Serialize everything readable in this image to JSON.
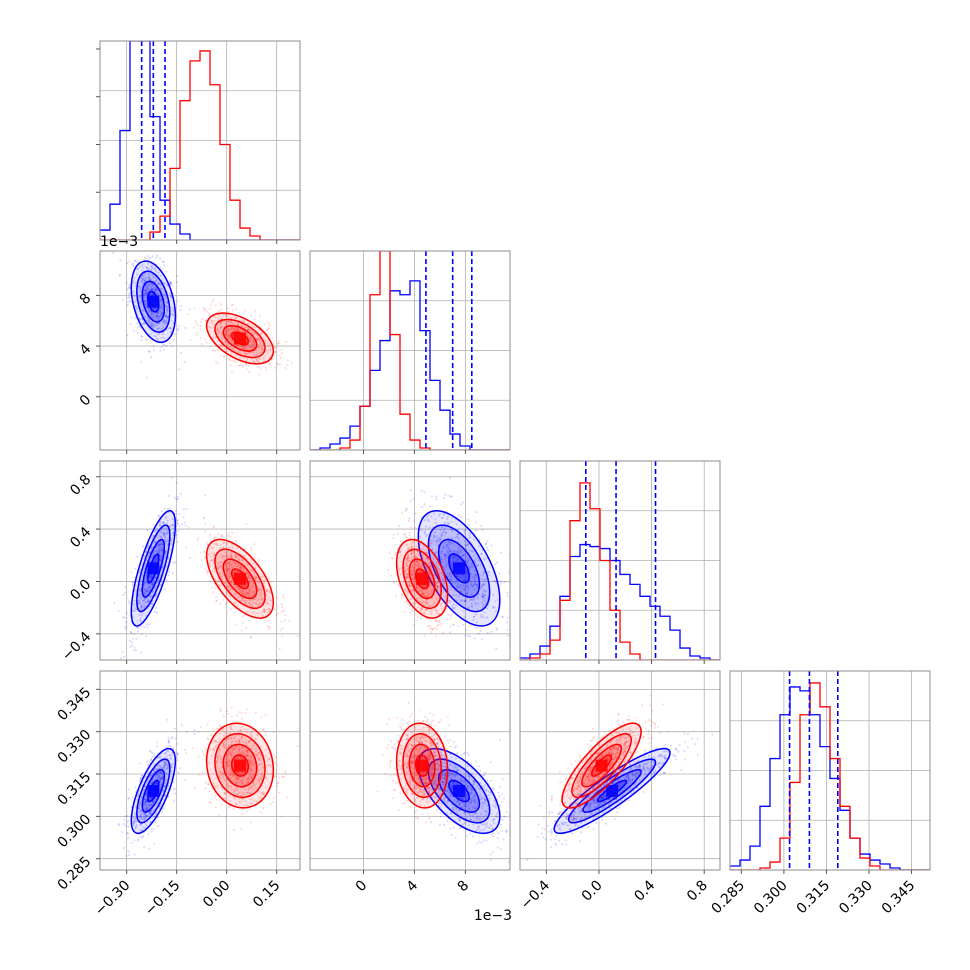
{
  "chart_data": {
    "type": "corner",
    "title": "",
    "parameters": [
      {
        "id": "p0",
        "range": [
          -0.38,
          0.22
        ],
        "ticks": [
          -0.3,
          -0.15,
          0.0,
          0.15
        ],
        "tick_labels": [
          "−0.30",
          "−0.15",
          "0.00",
          "0.15"
        ],
        "offset_text": ""
      },
      {
        "id": "p1",
        "range": [
          -0.0042,
          0.0115
        ],
        "ticks": [
          0,
          0.004,
          0.008
        ],
        "tick_labels": [
          "0",
          "4",
          "8"
        ],
        "offset_text": "1e−3"
      },
      {
        "id": "p2",
        "range": [
          -0.6,
          0.92
        ],
        "ticks": [
          -0.4,
          0.0,
          0.4,
          0.8
        ],
        "tick_labels": [
          "−0.4",
          "0.0",
          "0.4",
          "0.8"
        ],
        "offset_text": ""
      },
      {
        "id": "p3",
        "range": [
          0.281,
          0.3515
        ],
        "ticks": [
          0.285,
          0.3,
          0.315,
          0.33,
          0.345
        ],
        "tick_labels": [
          "0.285",
          "0.300",
          "0.315",
          "0.330",
          "0.345"
        ],
        "offset_text": ""
      }
    ],
    "series": [
      {
        "color": "#0000ff",
        "means": [
          -0.22,
          0.0075,
          0.1,
          0.309
        ],
        "sigmas": [
          0.033,
          0.0016,
          0.22,
          0.0075
        ],
        "correlations": [
          [
            0,
            1,
            -0.35
          ],
          [
            0,
            2,
            0.75
          ],
          [
            0,
            3,
            0.7
          ],
          [
            1,
            2,
            -0.55
          ],
          [
            1,
            3,
            -0.6
          ],
          [
            2,
            3,
            0.9
          ]
        ],
        "quantiles": [
          [
            -0.255,
            -0.22,
            -0.185
          ],
          [
            0.0049,
            0.007,
            0.0085
          ],
          [
            -0.1,
            0.13,
            0.43
          ],
          [
            0.302,
            0.309,
            0.319
          ]
        ],
        "histograms": [
          [
            0.05,
            0.18,
            0.55,
            1.0,
            1.0,
            0.62,
            0.2,
            0.08,
            0.03,
            0.0,
            0.0,
            0.0,
            0.0,
            0.0,
            0.0,
            0.0,
            0.0,
            0.0,
            0.0,
            0.0
          ],
          [
            0.0,
            0.01,
            0.03,
            0.06,
            0.12,
            0.22,
            0.4,
            0.55,
            0.8,
            0.78,
            0.85,
            0.6,
            0.35,
            0.2,
            0.08,
            0.02,
            0.0,
            0.0,
            0.0,
            0.0
          ],
          [
            0.01,
            0.03,
            0.07,
            0.17,
            0.32,
            0.52,
            0.58,
            0.57,
            0.56,
            0.5,
            0.43,
            0.38,
            0.32,
            0.27,
            0.22,
            0.15,
            0.06,
            0.02,
            0.01,
            0.0
          ],
          [
            0.02,
            0.05,
            0.12,
            0.32,
            0.56,
            0.78,
            0.92,
            0.9,
            0.78,
            0.62,
            0.46,
            0.3,
            0.16,
            0.08,
            0.05,
            0.03,
            0.01,
            0.0,
            0.0,
            0.0
          ]
        ]
      },
      {
        "color": "#ff0000",
        "means": [
          0.04,
          0.0046,
          0.02,
          0.318
        ],
        "sigmas": [
          0.05,
          0.001,
          0.15,
          0.0075
        ],
        "correlations": [
          [
            0,
            1,
            -0.5
          ],
          [
            0,
            2,
            -0.6
          ],
          [
            0,
            3,
            -0.1
          ],
          [
            1,
            2,
            -0.4
          ],
          [
            1,
            3,
            -0.1
          ],
          [
            2,
            3,
            0.8
          ]
        ],
        "quantiles": [
          null,
          null,
          null,
          null
        ],
        "histograms": [
          [
            0.0,
            0.0,
            0.0,
            0.0,
            0.0,
            0.04,
            0.12,
            0.36,
            0.7,
            0.9,
            0.95,
            0.78,
            0.48,
            0.2,
            0.06,
            0.02,
            0.0,
            0.0,
            0.0,
            0.0
          ],
          [
            0.0,
            0.0,
            0.0,
            0.01,
            0.05,
            0.22,
            0.78,
            1.0,
            0.58,
            0.18,
            0.05,
            0.01,
            0.0,
            0.0,
            0.0,
            0.0,
            0.0,
            0.0,
            0.0,
            0.0
          ],
          [
            0.0,
            0.01,
            0.03,
            0.1,
            0.3,
            0.7,
            0.89,
            0.76,
            0.5,
            0.25,
            0.09,
            0.03,
            0.0,
            0.0,
            0.0,
            0.0,
            0.0,
            0.0,
            0.0,
            0.0
          ],
          [
            0.0,
            0.0,
            0.0,
            0.01,
            0.04,
            0.16,
            0.44,
            0.78,
            0.94,
            0.82,
            0.56,
            0.32,
            0.16,
            0.06,
            0.02,
            0.0,
            0.0,
            0.0,
            0.0,
            0.0
          ]
        ]
      }
    ],
    "histogram_bins": 20,
    "contour_levels_sigma": [
      0.5,
      1.0,
      1.5,
      2.0
    ],
    "grid": true,
    "legend": "none"
  }
}
